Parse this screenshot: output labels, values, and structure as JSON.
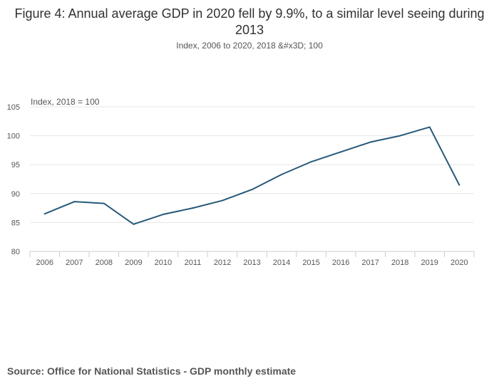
{
  "chart_data": {
    "type": "line",
    "title": "Figure 4: Annual average GDP in 2020 fell by 9.9%, to a similar level seeing during 2013",
    "subtitle": "Index, 2006 to 2020, 2018 &#x3D; 100",
    "ylabel": "Index, 2018 = 100",
    "xlabel": "",
    "ylim": [
      80,
      105
    ],
    "yticks": [
      80,
      85,
      90,
      95,
      100,
      105
    ],
    "categories": [
      "2006",
      "2007",
      "2008",
      "2009",
      "2010",
      "2011",
      "2012",
      "2013",
      "2014",
      "2015",
      "2016",
      "2017",
      "2018",
      "2019",
      "2020"
    ],
    "series": [
      {
        "name": "GDP",
        "color": "#27597a",
        "values": [
          86.5,
          88.6,
          88.3,
          84.7,
          86.4,
          87.5,
          88.8,
          90.7,
          93.3,
          95.5,
          97.2,
          98.9,
          100.0,
          101.5,
          91.5
        ]
      }
    ],
    "grid": true,
    "legend": "none"
  },
  "footer": {
    "source": "Source: Office for National Statistics - GDP monthly estimate"
  }
}
